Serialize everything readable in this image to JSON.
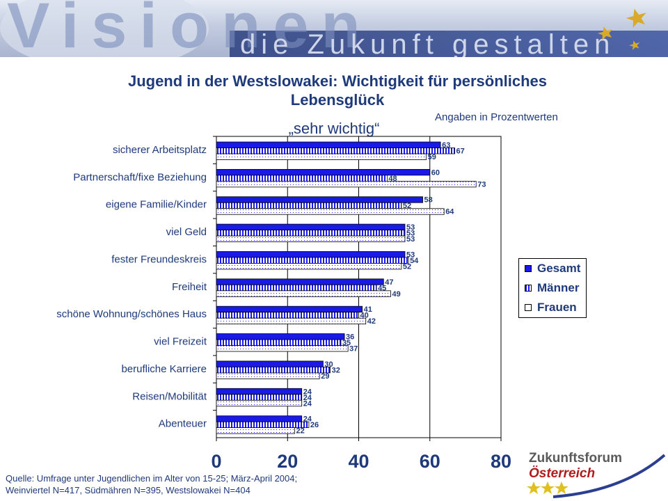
{
  "banner": {
    "big_word": "Visionen",
    "tagline": "die Zukunft gestalten"
  },
  "title_line1": "Jugend in der Westslowakei: Wichtigkeit für persönliches",
  "title_line2": "Lebensglück",
  "subtitle": "„sehr wichtig“",
  "unit_note": "Angaben in Prozentwerten",
  "chart_data": {
    "type": "bar",
    "orientation": "horizontal",
    "categories": [
      "sicherer Arbeitsplatz",
      "Partnerschaft/fixe Beziehung",
      "eigene Familie/Kinder",
      "viel Geld",
      "fester Freundeskreis",
      "Freiheit",
      "schöne Wohnung/schönes Haus",
      "viel Freizeit",
      "berufliche Karriere",
      "Reisen/Mobilität",
      "Abenteuer"
    ],
    "series": [
      {
        "name": "Gesamt",
        "values": [
          63,
          60,
          58,
          53,
          53,
          47,
          41,
          36,
          30,
          24,
          24
        ],
        "color": "#1a1ae6",
        "pattern": "solid"
      },
      {
        "name": "Männer",
        "values": [
          67,
          48,
          52,
          53,
          54,
          45,
          40,
          35,
          32,
          24,
          26
        ],
        "color": "#1a1ae6",
        "pattern": "vertical-stripes"
      },
      {
        "name": "Frauen",
        "values": [
          59,
          73,
          64,
          53,
          52,
          49,
          42,
          37,
          29,
          24,
          22
        ],
        "color": "#1a1ae6",
        "pattern": "dots"
      }
    ],
    "xlim": [
      0,
      80
    ],
    "xticks": [
      0,
      20,
      40,
      60,
      80
    ],
    "grid": "vertical",
    "legend": "right"
  },
  "source": {
    "line1": "Quelle: Umfrage unter Jugendlichen im Alter von 15-25; März-April 2004;",
    "line2": "Weinviertel N=417, Südmähren N=395, Westslowakei N=404"
  },
  "logo": {
    "line1": "Zukunftsforum",
    "line2": "Österreich"
  },
  "colors": {
    "title": "#1f3a7a",
    "bar": "#1a1ae6",
    "brand_red": "#b01c1c"
  }
}
